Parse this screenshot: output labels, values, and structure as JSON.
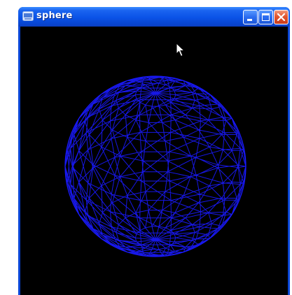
{
  "window": {
    "title": "sphere",
    "minimize_icon": "minimize-icon",
    "maximize_icon": "maximize-icon",
    "close_icon": "close-icon",
    "app_icon": "window-app-icon"
  },
  "canvas": {
    "background": "#000000",
    "content": "wireframe-sphere",
    "wire_color": "#1a1aff"
  },
  "colors": {
    "titlebar": "#0a52e6",
    "close_button": "#e2562f"
  }
}
